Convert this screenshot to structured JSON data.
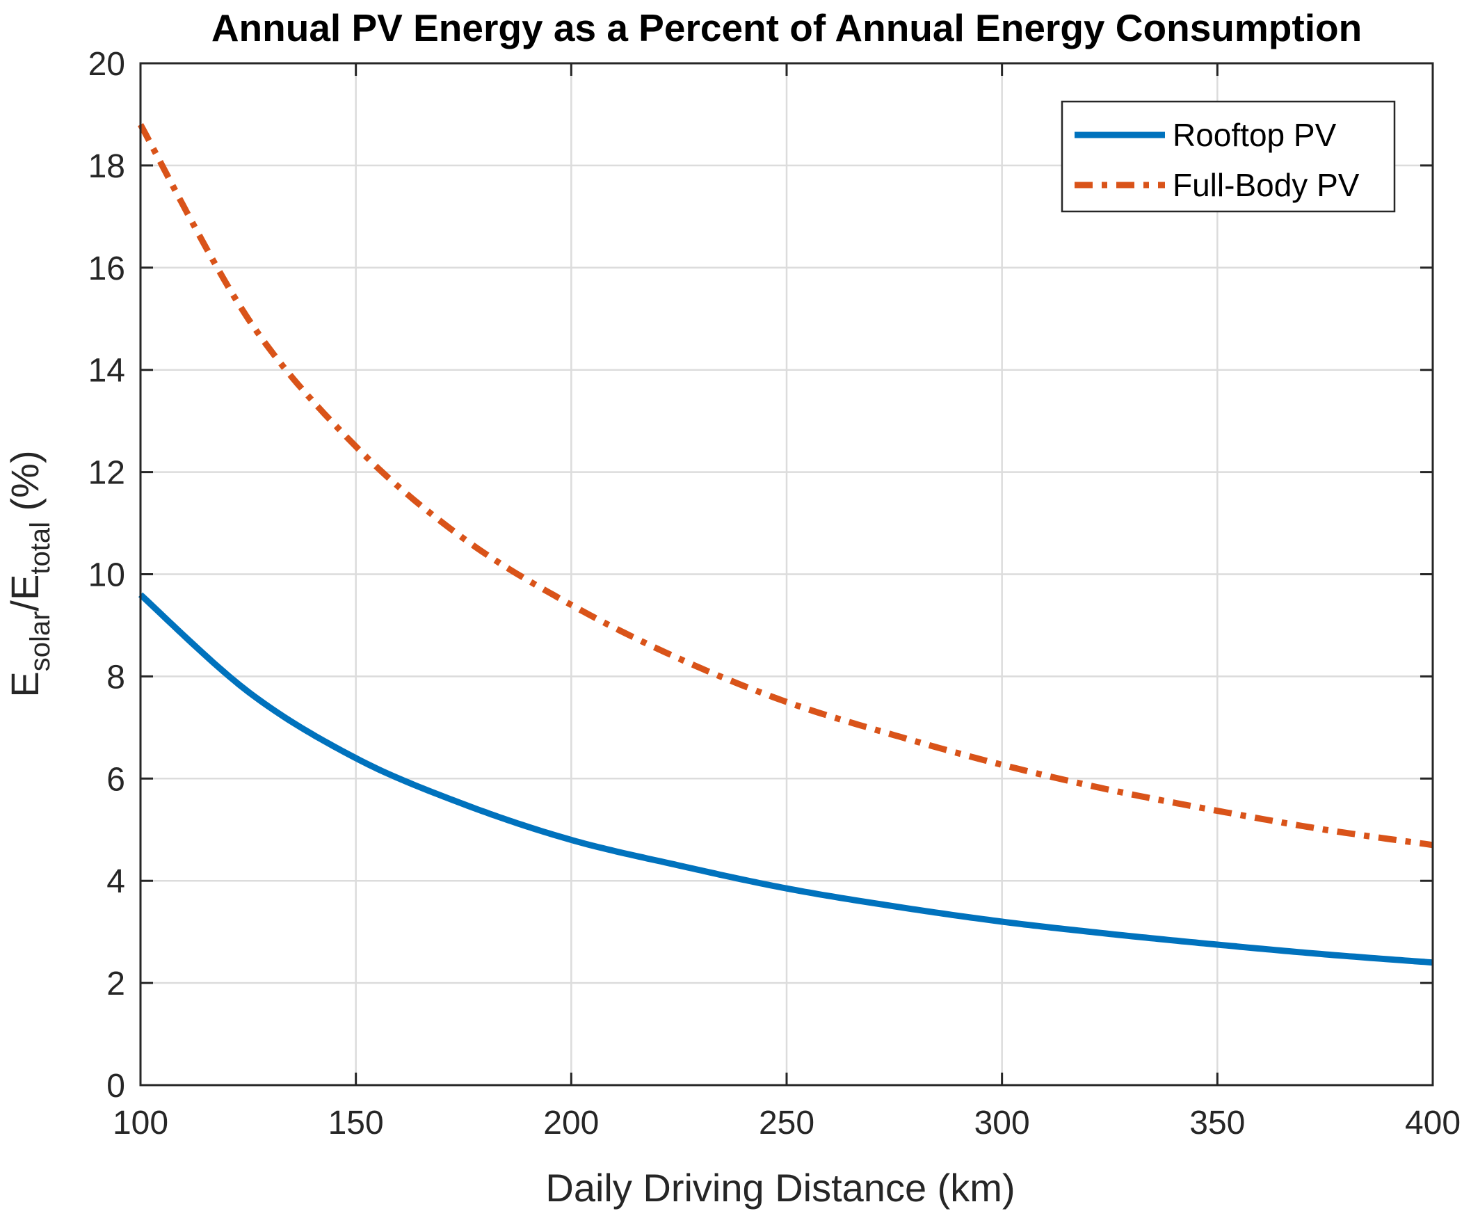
{
  "chart_data": {
    "type": "line",
    "title": "Annual PV Energy as a Percent of Annual Energy Consumption",
    "xlabel": "Daily Driving Distance (km)",
    "ylabel": {
      "base1": "E",
      "sub1": "solar",
      "sep": "/E",
      "sub2": "total",
      "suffix": " (%)"
    },
    "xlim": [
      100,
      400
    ],
    "ylim": [
      0,
      20
    ],
    "xticks": [
      100,
      150,
      200,
      250,
      300,
      350,
      400
    ],
    "yticks": [
      0,
      2,
      4,
      6,
      8,
      10,
      12,
      14,
      16,
      18,
      20
    ],
    "grid": true,
    "legend_position": "top-right",
    "series": [
      {
        "name": "Rooftop PV",
        "color": "#0072BD",
        "style": "solid",
        "x": [
          100,
          125,
          150,
          175,
          200,
          225,
          250,
          275,
          300,
          325,
          350,
          375,
          400
        ],
        "values": [
          9.6,
          7.7,
          6.4,
          5.5,
          4.8,
          4.3,
          3.85,
          3.5,
          3.2,
          2.96,
          2.75,
          2.56,
          2.4
        ]
      },
      {
        "name": "Full-Body PV",
        "color": "#D95319",
        "style": "dashdot",
        "x": [
          100,
          125,
          150,
          175,
          200,
          225,
          250,
          275,
          300,
          325,
          350,
          375,
          400
        ],
        "values": [
          18.8,
          15.0,
          12.5,
          10.7,
          9.4,
          8.35,
          7.5,
          6.85,
          6.27,
          5.78,
          5.37,
          5.0,
          4.7
        ]
      }
    ]
  }
}
